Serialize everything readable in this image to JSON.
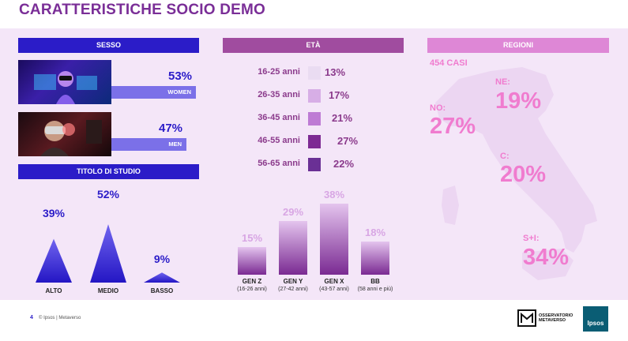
{
  "title": "CARATTERISTICHE SOCIO DEMO",
  "sesso": {
    "header": "SESSO",
    "women": {
      "pct": "53%",
      "label": "WOMEN"
    },
    "men": {
      "pct": "47%",
      "label": "MEN"
    }
  },
  "titolo": {
    "header": "TITOLO DI STUDIO",
    "items": [
      {
        "label": "ALTO",
        "pct": "39%"
      },
      {
        "label": "MEDIO",
        "pct": "52%"
      },
      {
        "label": "BASSO",
        "pct": "9%"
      }
    ]
  },
  "eta": {
    "header": "ETÀ",
    "rows": [
      {
        "label": "16-25 anni",
        "pct": "13%",
        "color": "#eadcf2"
      },
      {
        "label": "26-35 anni",
        "pct": "17%",
        "color": "#d7aee6"
      },
      {
        "label": "36-45 anni",
        "pct": "21%",
        "color": "#be7bd4"
      },
      {
        "label": "46-55 anni",
        "pct": "27%",
        "color": "#7d2a93"
      },
      {
        "label": "56-65 anni",
        "pct": "22%",
        "color": "#6a3095"
      }
    ],
    "generations": [
      {
        "label": "GEN Z",
        "sub": "(16-26 anni)",
        "pct": "15%"
      },
      {
        "label": "GEN Y",
        "sub": "(27-42 anni)",
        "pct": "29%"
      },
      {
        "label": "GEN X",
        "sub": "(43-57 anni)",
        "pct": "38%"
      },
      {
        "label": "BB",
        "sub": "(58 anni e più)",
        "pct": "18%"
      }
    ]
  },
  "regioni": {
    "header": "REGIONI",
    "casi": "454 CASI",
    "items": [
      {
        "label": "NE:",
        "pct": "19%"
      },
      {
        "label": "NO:",
        "pct": "27%"
      },
      {
        "label": "C:",
        "pct": "20%"
      },
      {
        "label": "S+I:",
        "pct": "34%"
      }
    ]
  },
  "footer": {
    "page": "4",
    "text": "© Ipsos | Metaverso"
  },
  "logos": {
    "observatory": "OSSERVATORIO METAVERSO",
    "ipsos": "Ipsos"
  },
  "chart_data": [
    {
      "type": "bar",
      "title": "SESSO",
      "categories": [
        "WOMEN",
        "MEN"
      ],
      "values": [
        53,
        47
      ]
    },
    {
      "type": "bar",
      "title": "TITOLO DI STUDIO",
      "categories": [
        "ALTO",
        "MEDIO",
        "BASSO"
      ],
      "values": [
        39,
        52,
        9
      ]
    },
    {
      "type": "bar",
      "title": "ETÀ",
      "categories": [
        "16-25 anni",
        "26-35 anni",
        "36-45 anni",
        "46-55 anni",
        "56-65 anni"
      ],
      "values": [
        13,
        17,
        21,
        27,
        22
      ]
    },
    {
      "type": "bar",
      "categories": [
        "GEN Z",
        "GEN Y",
        "GEN X",
        "BB"
      ],
      "values": [
        15,
        29,
        38,
        18
      ]
    },
    {
      "type": "table",
      "title": "REGIONI",
      "categories": [
        "NE",
        "NO",
        "C",
        "S+I"
      ],
      "values": [
        19,
        27,
        20,
        34
      ]
    }
  ]
}
